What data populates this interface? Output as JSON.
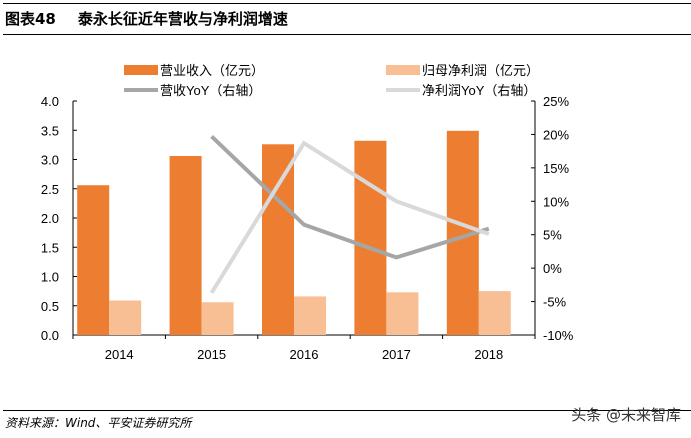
{
  "header": {
    "label": "图表48",
    "title": "泰永长征近年营收与净利润增速"
  },
  "footer": {
    "source": "资料来源：Wind、平安证券研究所",
    "watermark": "头条 @未来智库"
  },
  "chart_data": {
    "type": "bar+line",
    "categories": [
      "2014",
      "2015",
      "2016",
      "2017",
      "2018"
    ],
    "series": [
      {
        "name": "营业收入（亿元）",
        "type": "bar",
        "axis": "left",
        "color": "#ED7D31",
        "values": [
          2.56,
          3.06,
          3.26,
          3.32,
          3.49
        ]
      },
      {
        "name": "归母净利润（亿元）",
        "type": "bar",
        "axis": "left",
        "color": "#F8BF94",
        "values": [
          0.59,
          0.56,
          0.66,
          0.73,
          0.75
        ]
      },
      {
        "name": "营收YoY（右轴）",
        "type": "line",
        "axis": "right",
        "color": "#A6A6A6",
        "values": [
          null,
          19.7,
          6.5,
          1.6,
          5.9
        ]
      },
      {
        "name": "净利润YoY（右轴）",
        "type": "line",
        "axis": "right",
        "color": "#D9D9D9",
        "values": [
          null,
          -3.7,
          18.7,
          10.0,
          5.1
        ]
      }
    ],
    "left_axis": {
      "ylim": [
        0,
        4.0
      ],
      "ticks": [
        "0.0",
        "0.5",
        "1.0",
        "1.5",
        "2.0",
        "2.5",
        "3.0",
        "3.5",
        "4.0"
      ]
    },
    "right_axis": {
      "ylim": [
        -10,
        25
      ],
      "ticks": [
        "-10%",
        "-5%",
        "0%",
        "5%",
        "10%",
        "15%",
        "20%",
        "25%"
      ]
    },
    "legend": "top",
    "grid": false
  }
}
